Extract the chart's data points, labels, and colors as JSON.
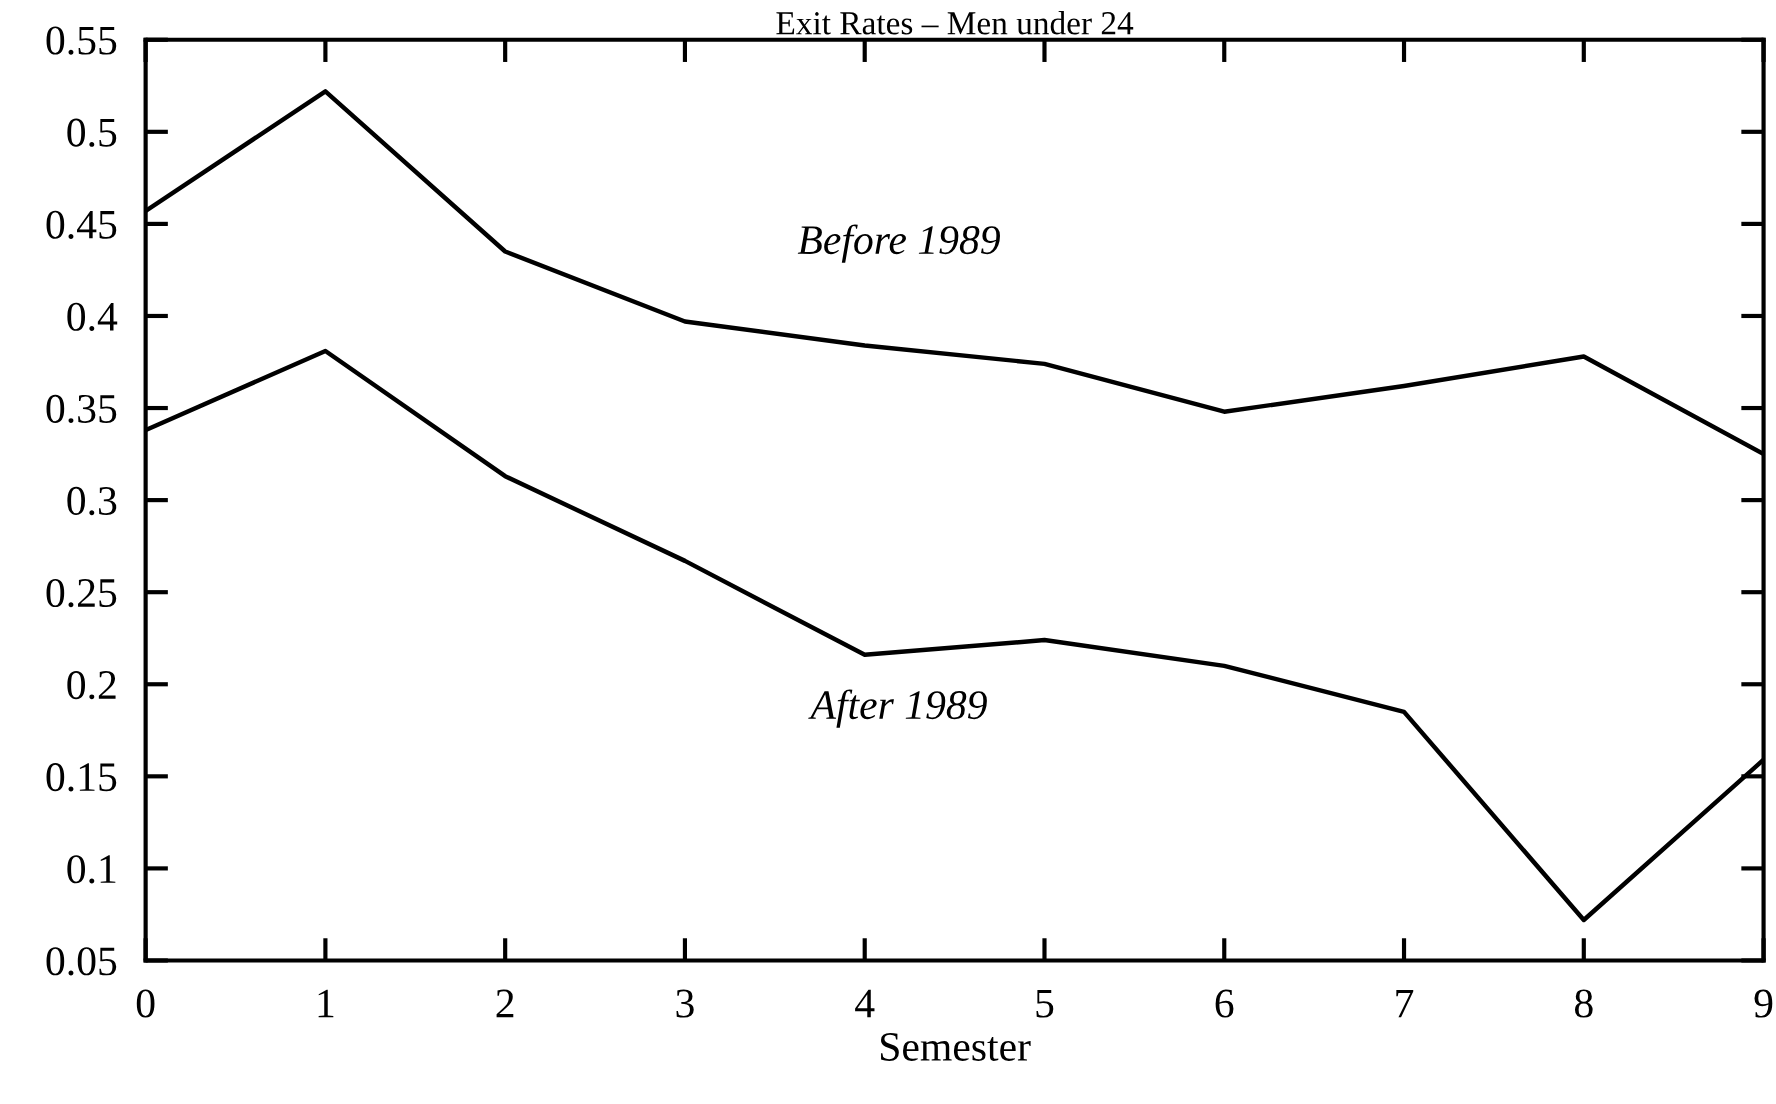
{
  "chart_data": {
    "type": "line",
    "title": "Exit Rates – Men under 24",
    "xlabel": "Semester",
    "x": [
      0,
      1,
      2,
      3,
      4,
      5,
      6,
      7,
      8,
      9
    ],
    "series": [
      {
        "name": "Before 1989",
        "color": "#000000",
        "values": [
          0.457,
          0.522,
          0.435,
          0.397,
          0.384,
          0.374,
          0.348,
          0.362,
          0.378,
          0.325
        ]
      },
      {
        "name": "After 1989",
        "color": "#000000",
        "values": [
          0.338,
          0.381,
          0.313,
          0.267,
          0.216,
          0.224,
          0.21,
          0.185,
          0.072,
          0.159
        ]
      }
    ],
    "xlim": [
      0,
      9
    ],
    "xticks": [
      0,
      1,
      2,
      3,
      4,
      5,
      6,
      7,
      8,
      9
    ],
    "ylim": [
      0.05,
      0.55
    ],
    "yticks": [
      0.05,
      0.1,
      0.15,
      0.2,
      0.25,
      0.3,
      0.35,
      0.4,
      0.45,
      0.5,
      0.55
    ],
    "grid": false,
    "legend": false,
    "marker": "none",
    "line_style": "solid"
  }
}
